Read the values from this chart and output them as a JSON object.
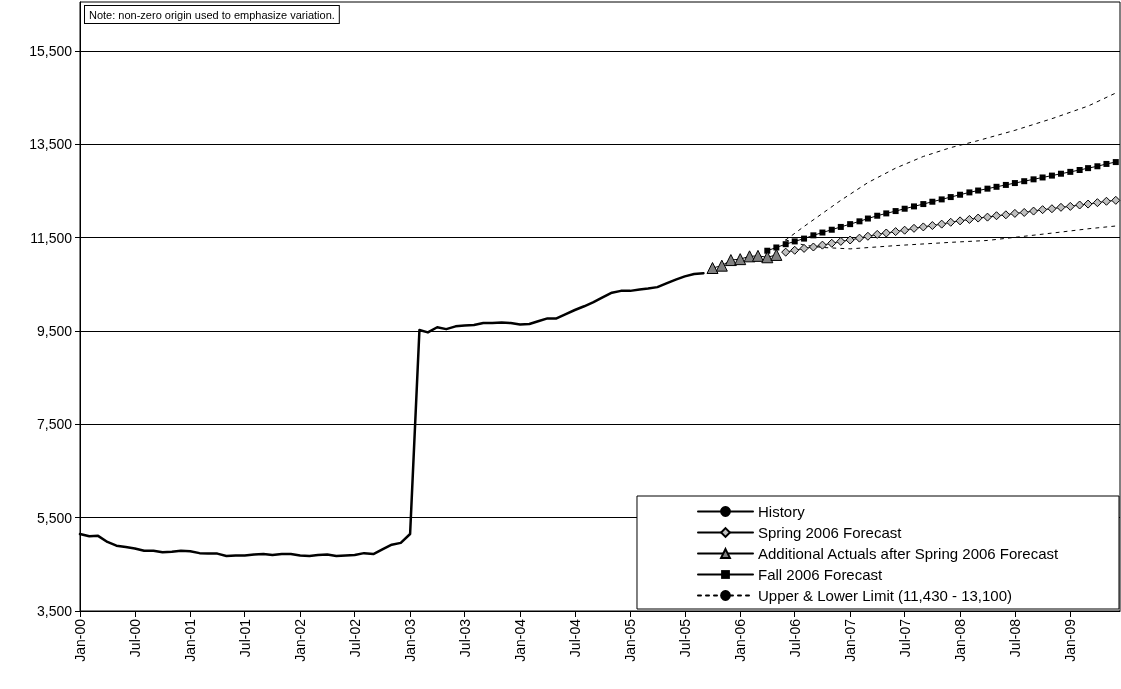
{
  "chart_data": {
    "type": "line",
    "annotations": [
      "Note: non-zero origin used to emphasize variation."
    ],
    "xlim": [
      "2000-01",
      "2009-06-15"
    ],
    "xticks": [
      {
        "value": "2000-01",
        "label": "Jan-00"
      },
      {
        "value": "2000-07",
        "label": "Jul-00"
      },
      {
        "value": "2001-01",
        "label": "Jan-01"
      },
      {
        "value": "2001-07",
        "label": "Jul-01"
      },
      {
        "value": "2002-01",
        "label": "Jan-02"
      },
      {
        "value": "2002-07",
        "label": "Jul-02"
      },
      {
        "value": "2003-01",
        "label": "Jan-03"
      },
      {
        "value": "2003-07",
        "label": "Jul-03"
      },
      {
        "value": "2004-01",
        "label": "Jan-04"
      },
      {
        "value": "2004-07",
        "label": "Jul-04"
      },
      {
        "value": "2005-01",
        "label": "Jan-05"
      },
      {
        "value": "2005-07",
        "label": "Jul-05"
      },
      {
        "value": "2006-01",
        "label": "Jan-06"
      },
      {
        "value": "2006-07",
        "label": "Jul-06"
      },
      {
        "value": "2007-01",
        "label": "Jan-07"
      },
      {
        "value": "2007-07",
        "label": "Jul-07"
      },
      {
        "value": "2008-01",
        "label": "Jan-08"
      },
      {
        "value": "2008-07",
        "label": "Jul-08"
      },
      {
        "value": "2009-01",
        "label": "Jan-09"
      }
    ],
    "ylim": [
      3500,
      16550
    ],
    "yticks": [
      {
        "value": 3500,
        "label": "3,500"
      },
      {
        "value": 5500,
        "label": "5,500"
      },
      {
        "value": 7500,
        "label": "7,500"
      },
      {
        "value": 9500,
        "label": "9,500"
      },
      {
        "value": 11500,
        "label": "11,500"
      },
      {
        "value": 13500,
        "label": "13,500"
      },
      {
        "value": 15500,
        "label": "15,500"
      }
    ],
    "grid": "y",
    "legend": "bottom right",
    "series": [
      {
        "name": "History",
        "color": "#000000",
        "marker": "none",
        "line_style": "solid",
        "x": [
          "2000-01",
          "2000-02",
          "2000-03",
          "2000-04",
          "2000-05",
          "2000-06",
          "2000-07",
          "2000-08",
          "2000-09",
          "2000-10",
          "2000-11",
          "2000-12",
          "2001-01",
          "2001-02",
          "2001-03",
          "2001-04",
          "2001-05",
          "2001-06",
          "2001-07",
          "2001-08",
          "2001-09",
          "2001-10",
          "2001-11",
          "2001-12",
          "2002-01",
          "2002-02",
          "2002-03",
          "2002-04",
          "2002-05",
          "2002-06",
          "2002-07",
          "2002-08",
          "2002-09",
          "2002-10",
          "2002-11",
          "2002-12",
          "2003-01",
          "2003-02",
          "2003-03",
          "2003-04",
          "2003-05",
          "2003-06",
          "2003-07",
          "2003-08",
          "2003-09",
          "2003-10",
          "2003-11",
          "2003-12",
          "2004-01",
          "2004-02",
          "2004-03",
          "2004-04",
          "2004-05",
          "2004-06",
          "2004-07",
          "2004-08",
          "2004-09",
          "2004-10",
          "2004-11",
          "2004-12",
          "2005-01",
          "2005-02",
          "2005-03",
          "2005-04",
          "2005-05",
          "2005-06",
          "2005-07",
          "2005-08",
          "2005-09"
        ],
        "values": [
          5150,
          5100,
          5110,
          4980,
          4900,
          4870,
          4840,
          4790,
          4790,
          4760,
          4770,
          4790,
          4780,
          4740,
          4730,
          4730,
          4680,
          4690,
          4690,
          4710,
          4720,
          4700,
          4720,
          4720,
          4690,
          4680,
          4700,
          4710,
          4680,
          4690,
          4700,
          4740,
          4720,
          4820,
          4920,
          4960,
          5150,
          9520,
          9470,
          9580,
          9540,
          9600,
          9620,
          9630,
          9670,
          9670,
          9680,
          9670,
          9640,
          9650,
          9710,
          9770,
          9770,
          9860,
          9950,
          10030,
          10120,
          10220,
          10320,
          10360,
          10360,
          10390,
          10410,
          10440,
          10520,
          10600,
          10670,
          10720,
          10740
        ]
      },
      {
        "name": "Spring 2006 Forecast",
        "color": "#c0c0c0",
        "marker": "diamond",
        "line_style": "solid",
        "x": [
          "2006-06",
          "2006-07",
          "2006-08",
          "2006-09",
          "2006-10",
          "2006-11",
          "2006-12",
          "2007-01",
          "2007-02",
          "2007-03",
          "2007-04",
          "2007-05",
          "2007-06",
          "2007-07",
          "2007-08",
          "2007-09",
          "2007-10",
          "2007-11",
          "2007-12",
          "2008-01",
          "2008-02",
          "2008-03",
          "2008-04",
          "2008-05",
          "2008-06",
          "2008-07",
          "2008-08",
          "2008-09",
          "2008-10",
          "2008-11",
          "2008-12",
          "2009-01",
          "2009-02",
          "2009-03",
          "2009-04",
          "2009-05",
          "2009-06"
        ],
        "values": [
          11190,
          11230,
          11270,
          11300,
          11340,
          11380,
          11420,
          11450,
          11490,
          11530,
          11570,
          11600,
          11630,
          11660,
          11700,
          11730,
          11760,
          11790,
          11830,
          11860,
          11890,
          11920,
          11940,
          11970,
          11990,
          12020,
          12040,
          12070,
          12100,
          12120,
          12150,
          12170,
          12200,
          12220,
          12250,
          12280,
          12300
        ]
      },
      {
        "name": "Additional Actuals after Spring 2006 Forecast",
        "color": "#808080",
        "marker": "triangle",
        "line_style": "solid",
        "x": [
          "2005-10",
          "2005-11",
          "2005-12",
          "2006-01",
          "2006-02",
          "2006-03",
          "2006-04",
          "2006-05"
        ],
        "values": [
          10850,
          10900,
          11020,
          11040,
          11100,
          11110,
          11080,
          11130
        ]
      },
      {
        "name": "Fall 2006 Forecast",
        "color": "#000000",
        "marker": "square",
        "line_style": "solid",
        "x": [
          "2006-04",
          "2006-05",
          "2006-06",
          "2006-07",
          "2006-08",
          "2006-09",
          "2006-10",
          "2006-11",
          "2006-12",
          "2007-01",
          "2007-02",
          "2007-03",
          "2007-04",
          "2007-05",
          "2007-06",
          "2007-07",
          "2007-08",
          "2007-09",
          "2007-10",
          "2007-11",
          "2007-12",
          "2008-01",
          "2008-02",
          "2008-03",
          "2008-04",
          "2008-05",
          "2008-06",
          "2008-07",
          "2008-08",
          "2008-09",
          "2008-10",
          "2008-11",
          "2008-12",
          "2009-01",
          "2009-02",
          "2009-03",
          "2009-04",
          "2009-05",
          "2009-06"
        ],
        "values": [
          11220,
          11290,
          11360,
          11420,
          11480,
          11550,
          11610,
          11670,
          11730,
          11790,
          11850,
          11910,
          11970,
          12020,
          12070,
          12120,
          12170,
          12220,
          12270,
          12320,
          12370,
          12420,
          12470,
          12510,
          12550,
          12590,
          12630,
          12670,
          12710,
          12750,
          12790,
          12830,
          12870,
          12910,
          12950,
          12990,
          13030,
          13080,
          13120
        ]
      },
      {
        "name": "Upper & Lower Limit (11,430 - 13,100)",
        "color": "#000000",
        "marker": "none",
        "line_style": "dotted",
        "x": [
          "2006-06",
          "2006-08",
          "2006-10",
          "2006-12",
          "2007-03",
          "2007-06",
          "2007-09",
          "2007-12",
          "2008-03",
          "2008-07",
          "2008-11",
          "2009-03",
          "2009-06"
        ],
        "values": [
          11450,
          11740,
          12020,
          12300,
          12680,
          12990,
          13240,
          13430,
          13580,
          13800,
          14050,
          14320,
          14600
        ]
      },
      {
        "color": "#000000",
        "marker": "none",
        "line_style": "dotted",
        "x": [
          "2006-06",
          "2006-08",
          "2006-10",
          "2007-01",
          "2007-06",
          "2007-12",
          "2008-04",
          "2008-08",
          "2008-12",
          "2009-03",
          "2009-06"
        ],
        "values": [
          11450,
          11340,
          11290,
          11260,
          11330,
          11400,
          11440,
          11530,
          11620,
          11690,
          11750
        ]
      }
    ]
  }
}
